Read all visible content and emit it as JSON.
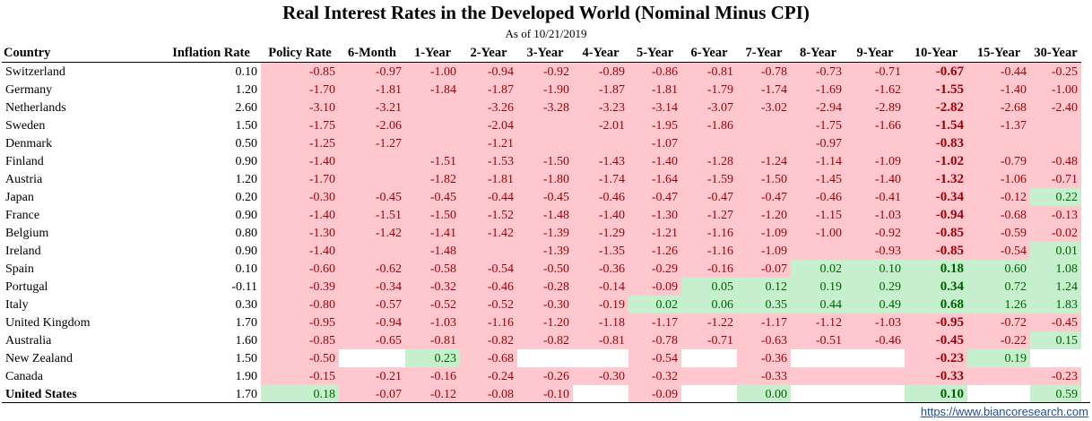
{
  "title": "Real Interest Rates in the Developed World (Nominal Minus CPI)",
  "subtitle": "As of 10/21/2019",
  "source": "https://www.biancoresearch.com",
  "colors": {
    "negative_fill": "#ffc7ce",
    "negative_text": "#9c0006",
    "positive_fill": "#c6efce",
    "positive_text": "#006100"
  },
  "chart_data": {
    "type": "table",
    "columns": [
      "Country",
      "Inflation Rate",
      "Policy Rate",
      "6-Month",
      "1-Year",
      "2-Year",
      "3-Year",
      "4-Year",
      "5-Year",
      "6-Year",
      "7-Year",
      "8-Year",
      "9-Year",
      "10-Year",
      "15-Year",
      "30-Year"
    ],
    "rows": [
      {
        "country": "Switzerland",
        "inflation": "0.10",
        "values": [
          "-0.85",
          "-0.97",
          "-1.00",
          "-0.94",
          "-0.92",
          "-0.89",
          "-0.86",
          "-0.81",
          "-0.78",
          "-0.73",
          "-0.71",
          "-0.67",
          "-0.44",
          "-0.25"
        ]
      },
      {
        "country": "Germany",
        "inflation": "1.20",
        "values": [
          "-1.70",
          "-1.81",
          "-1.84",
          "-1.87",
          "-1.90",
          "-1.87",
          "-1.81",
          "-1.79",
          "-1.74",
          "-1.69",
          "-1.62",
          "-1.55",
          "-1.40",
          "-1.00"
        ]
      },
      {
        "country": "Netherlands",
        "inflation": "2.60",
        "values": [
          "-3.10",
          "-3.21",
          "",
          "-3.26",
          "-3.28",
          "-3.23",
          "-3.14",
          "-3.07",
          "-3.02",
          "-2.94",
          "-2.89",
          "-2.82",
          "-2.68",
          "-2.40"
        ]
      },
      {
        "country": "Sweden",
        "inflation": "1.50",
        "values": [
          "-1.75",
          "-2.06",
          "",
          "-2.04",
          "",
          "-2.01",
          "-1.95",
          "-1.86",
          "",
          "-1.75",
          "-1.66",
          "-1.54",
          "-1.37",
          ""
        ]
      },
      {
        "country": "Denmark",
        "inflation": "0.50",
        "values": [
          "-1.25",
          "-1.27",
          "",
          "-1.21",
          "",
          "",
          "-1.07",
          "",
          "",
          "-0.97",
          "",
          "-0.83",
          "",
          ""
        ]
      },
      {
        "country": "Finland",
        "inflation": "0.90",
        "values": [
          "-1.40",
          "",
          "-1.51",
          "-1.53",
          "-1.50",
          "-1.43",
          "-1.40",
          "-1.28",
          "-1.24",
          "-1.14",
          "-1.09",
          "-1.02",
          "-0.79",
          "-0.48"
        ]
      },
      {
        "country": "Austria",
        "inflation": "1.20",
        "values": [
          "-1.70",
          "",
          "-1.82",
          "-1.81",
          "-1.80",
          "-1.74",
          "-1.64",
          "-1.59",
          "-1.50",
          "-1.45",
          "-1.40",
          "-1.32",
          "-1.06",
          "-0.71"
        ]
      },
      {
        "country": "Japan",
        "inflation": "0.20",
        "values": [
          "-0.30",
          "-0.45",
          "-0.45",
          "-0.44",
          "-0.45",
          "-0.46",
          "-0.47",
          "-0.47",
          "-0.47",
          "-0.46",
          "-0.41",
          "-0.34",
          "-0.12",
          "0.22"
        ]
      },
      {
        "country": "France",
        "inflation": "0.90",
        "values": [
          "-1.40",
          "-1.51",
          "-1.50",
          "-1.52",
          "-1.48",
          "-1.40",
          "-1.30",
          "-1.27",
          "-1.20",
          "-1.15",
          "-1.03",
          "-0.94",
          "-0.68",
          "-0.13"
        ]
      },
      {
        "country": "Belgium",
        "inflation": "0.80",
        "values": [
          "-1.30",
          "-1.42",
          "-1.41",
          "-1.42",
          "-1.39",
          "-1.29",
          "-1.21",
          "-1.16",
          "-1.09",
          "-1.00",
          "-0.92",
          "-0.85",
          "-0.59",
          "-0.02"
        ]
      },
      {
        "country": "Ireland",
        "inflation": "0.90",
        "values": [
          "-1.40",
          "",
          "-1.48",
          "",
          "-1.39",
          "-1.35",
          "-1.26",
          "-1.16",
          "-1.09",
          "",
          "-0.93",
          "-0.85",
          "-0.54",
          "0.01"
        ]
      },
      {
        "country": "Spain",
        "inflation": "0.10",
        "values": [
          "-0.60",
          "-0.62",
          "-0.58",
          "-0.54",
          "-0.50",
          "-0.36",
          "-0.29",
          "-0.16",
          "-0.07",
          "0.02",
          "0.10",
          "0.18",
          "0.60",
          "1.08"
        ]
      },
      {
        "country": "Portugal",
        "inflation": "-0.11",
        "values": [
          "-0.39",
          "-0.34",
          "-0.32",
          "-0.46",
          "-0.28",
          "-0.14",
          "-0.09",
          "0.05",
          "0.12",
          "0.19",
          "0.29",
          "0.34",
          "0.72",
          "1.24"
        ]
      },
      {
        "country": "Italy",
        "inflation": "0.30",
        "values": [
          "-0.80",
          "-0.57",
          "-0.52",
          "-0.52",
          "-0.30",
          "-0.19",
          "0.02",
          "0.06",
          "0.35",
          "0.44",
          "0.49",
          "0.68",
          "1.26",
          "1.83"
        ]
      },
      {
        "country": "United Kingdom",
        "inflation": "1.70",
        "values": [
          "-0.95",
          "-0.94",
          "-1.03",
          "-1.16",
          "-1.20",
          "-1.18",
          "-1.17",
          "-1.22",
          "-1.17",
          "-1.12",
          "-1.03",
          "-0.95",
          "-0.72",
          "-0.45"
        ]
      },
      {
        "country": "Australia",
        "inflation": "1.60",
        "values": [
          "-0.85",
          "-0.65",
          "-0.81",
          "-0.82",
          "-0.82",
          "-0.81",
          "-0.78",
          "-0.71",
          "-0.63",
          "-0.51",
          "-0.46",
          "-0.45",
          "-0.22",
          "0.15"
        ]
      },
      {
        "country": "New Zealand",
        "inflation": "1.50",
        "values": [
          "-0.50",
          "",
          "0.23",
          "-0.68",
          "",
          "",
          "-0.54",
          "",
          "-0.36",
          "",
          "",
          "-0.23",
          "0.19",
          ""
        ]
      },
      {
        "country": "Canada",
        "inflation": "1.90",
        "values": [
          "-0.15",
          "-0.21",
          "-0.16",
          "-0.24",
          "-0.26",
          "-0.30",
          "-0.32",
          "",
          "-0.33",
          "",
          "",
          "-0.33",
          "",
          "-0.23"
        ]
      },
      {
        "country": "United States",
        "inflation": "1.70",
        "bold": true,
        "values": [
          "0.18",
          "-0.07",
          "-0.12",
          "-0.08",
          "-0.10",
          "",
          "-0.09",
          "",
          "0.00",
          "",
          "",
          "0.10",
          "",
          "0.59"
        ]
      }
    ]
  }
}
